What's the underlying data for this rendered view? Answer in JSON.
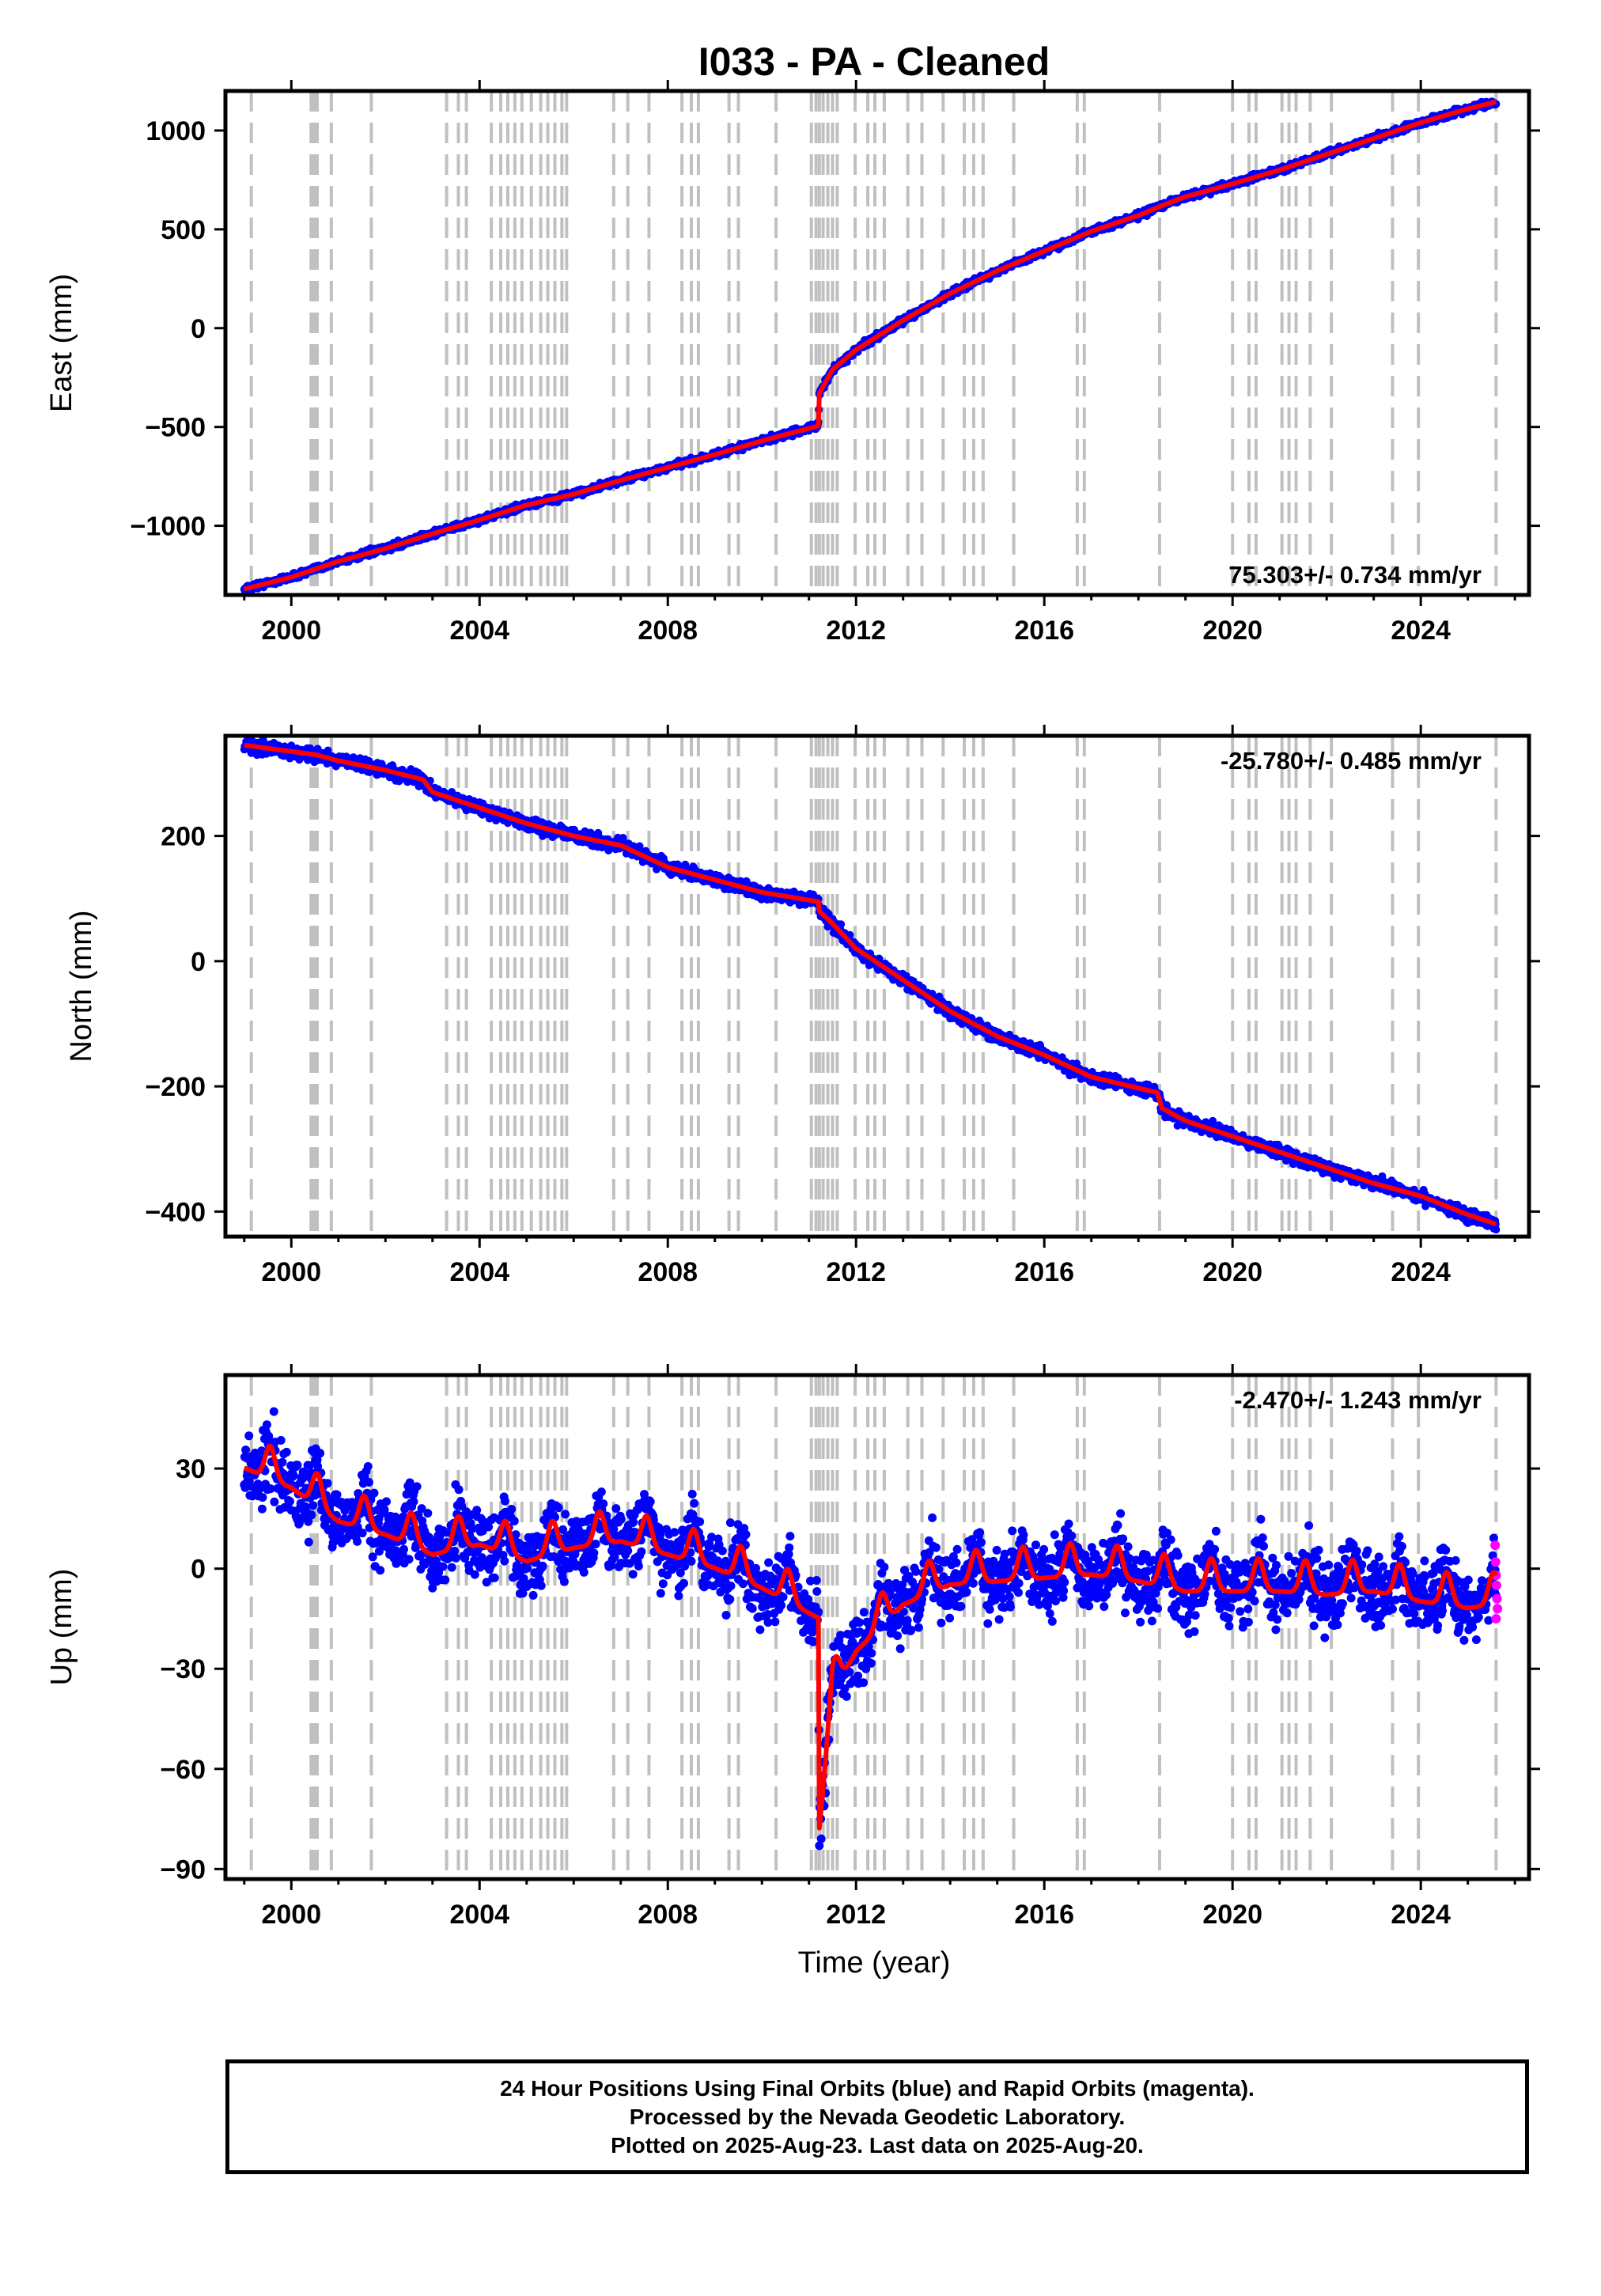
{
  "title": "I033  - PA - Cleaned",
  "chart_data": [
    {
      "type": "scatter",
      "ylabel": "East (mm)",
      "xlim": [
        1998.6,
        2026.3
      ],
      "ylim": [
        -1350,
        1200
      ],
      "yticks": [
        1000,
        500,
        0,
        -500,
        -1000
      ],
      "xticks": [
        2000,
        2004,
        2008,
        2012,
        2016,
        2020,
        2024
      ],
      "rate_label": "75.303+/- 0.734 mm/yr",
      "rate_position": "bottom-right",
      "model": [
        [
          1999.0,
          -1320
        ],
        [
          2000.0,
          -1260
        ],
        [
          2001.0,
          -1180
        ],
        [
          2002.0,
          -1115
        ],
        [
          2003.0,
          -1040
        ],
        [
          2004.0,
          -970
        ],
        [
          2005.0,
          -895
        ],
        [
          2006.0,
          -840
        ],
        [
          2007.0,
          -770
        ],
        [
          2008.0,
          -705
        ],
        [
          2009.0,
          -640
        ],
        [
          2010.0,
          -570
        ],
        [
          2011.2,
          -495
        ],
        [
          2011.22,
          -330
        ],
        [
          2011.5,
          -210
        ],
        [
          2012.0,
          -110
        ],
        [
          2013.0,
          40
        ],
        [
          2014.0,
          175
        ],
        [
          2015.0,
          290
        ],
        [
          2016.0,
          390
        ],
        [
          2017.0,
          490
        ],
        [
          2018.0,
          570
        ],
        [
          2018.5,
          620
        ],
        [
          2019.0,
          665
        ],
        [
          2020.0,
          730
        ],
        [
          2021.0,
          800
        ],
        [
          2022.0,
          880
        ],
        [
          2023.0,
          960
        ],
        [
          2024.0,
          1040
        ],
        [
          2025.0,
          1110
        ],
        [
          2025.6,
          1145
        ]
      ],
      "noise": 8
    },
    {
      "type": "scatter",
      "ylabel": "North (mm)",
      "xlim": [
        1998.6,
        2026.3
      ],
      "ylim": [
        -440,
        360
      ],
      "yticks": [
        200,
        0,
        -200,
        -400
      ],
      "xticks": [
        2000,
        2004,
        2008,
        2012,
        2016,
        2020,
        2024
      ],
      "rate_label": "-25.780+/- 0.485 mm/yr",
      "rate_position": "top-right",
      "model": [
        [
          1999.0,
          345
        ],
        [
          2000.0,
          335
        ],
        [
          2000.5,
          330
        ],
        [
          2001.0,
          320
        ],
        [
          2002.0,
          305
        ],
        [
          2002.8,
          290
        ],
        [
          2003.0,
          270
        ],
        [
          2004.0,
          245
        ],
        [
          2005.0,
          220
        ],
        [
          2006.0,
          200
        ],
        [
          2007.0,
          185
        ],
        [
          2008.0,
          150
        ],
        [
          2009.0,
          130
        ],
        [
          2010.0,
          110
        ],
        [
          2011.2,
          95
        ],
        [
          2011.22,
          80
        ],
        [
          2011.5,
          60
        ],
        [
          2012.0,
          20
        ],
        [
          2013.0,
          -30
        ],
        [
          2014.0,
          -80
        ],
        [
          2015.0,
          -120
        ],
        [
          2016.0,
          -150
        ],
        [
          2017.0,
          -185
        ],
        [
          2018.4,
          -210
        ],
        [
          2018.5,
          -235
        ],
        [
          2019.0,
          -255
        ],
        [
          2020.0,
          -280
        ],
        [
          2021.0,
          -305
        ],
        [
          2022.0,
          -330
        ],
        [
          2023.0,
          -355
        ],
        [
          2024.0,
          -375
        ],
        [
          2025.0,
          -405
        ],
        [
          2025.6,
          -420
        ]
      ],
      "noise": 5
    },
    {
      "type": "scatter",
      "ylabel": "Up (mm)",
      "xlabel": "Time (year)",
      "xlim": [
        1998.6,
        2026.3
      ],
      "ylim": [
        -93,
        58
      ],
      "yticks": [
        30,
        0,
        -30,
        -60,
        -90
      ],
      "xticks": [
        2000,
        2004,
        2008,
        2012,
        2016,
        2020,
        2024
      ],
      "rate_label": "-2.470+/- 1.243 mm/yr",
      "rate_position": "top-right",
      "model": [
        [
          1999.0,
          33
        ],
        [
          2000.0,
          27
        ],
        [
          2001.0,
          17
        ],
        [
          2002.0,
          13
        ],
        [
          2003.0,
          7
        ],
        [
          2004.0,
          10
        ],
        [
          2005.0,
          5
        ],
        [
          2006.0,
          9
        ],
        [
          2007.0,
          11
        ],
        [
          2008.0,
          7
        ],
        [
          2009.0,
          3
        ],
        [
          2010.0,
          -3
        ],
        [
          2011.2,
          -12
        ],
        [
          2011.22,
          -75
        ],
        [
          2011.5,
          -35
        ],
        [
          2012.0,
          -22
        ],
        [
          2013.0,
          -8
        ],
        [
          2014.0,
          -2
        ],
        [
          2015.0,
          -1
        ],
        [
          2016.0,
          0
        ],
        [
          2017.0,
          1
        ],
        [
          2018.0,
          -1
        ],
        [
          2019.0,
          -4
        ],
        [
          2020.0,
          -4
        ],
        [
          2021.0,
          -4
        ],
        [
          2022.0,
          -5
        ],
        [
          2023.0,
          -4
        ],
        [
          2024.0,
          -7
        ],
        [
          2025.0,
          -9
        ],
        [
          2025.6,
          -8
        ]
      ],
      "seasonal_amp": 7,
      "noise": 5,
      "rapid_points": [
        [
          2025.58,
          7
        ],
        [
          2025.59,
          2
        ],
        [
          2025.6,
          -2
        ],
        [
          2025.61,
          -5
        ],
        [
          2025.62,
          -9
        ],
        [
          2025.63,
          -12
        ],
        [
          2025.6,
          -15
        ]
      ]
    }
  ],
  "equipment_changes": [
    1999.15,
    2000.42,
    2000.45,
    2000.48,
    2000.52,
    2000.55,
    2000.85,
    2001.7,
    2003.3,
    2003.55,
    2003.72,
    2004.25,
    2004.45,
    2004.6,
    2004.75,
    2004.9,
    2005.1,
    2005.3,
    2005.45,
    2005.6,
    2005.75,
    2005.85,
    2006.85,
    2007.15,
    2007.6,
    2008.3,
    2008.5,
    2008.65,
    2009.3,
    2009.5,
    2010.3,
    2011.05,
    2011.15,
    2011.22,
    2011.3,
    2011.4,
    2011.5,
    2011.6,
    2011.98,
    2012.25,
    2012.4,
    2012.6,
    2013.1,
    2013.4,
    2013.85,
    2014.3,
    2014.5,
    2014.7,
    2015.35,
    2016.7,
    2016.85,
    2018.45,
    2020.0,
    2020.35,
    2020.5,
    2021.05,
    2021.2,
    2021.35,
    2021.65,
    2022.1,
    2023.4,
    2023.95,
    2025.6
  ],
  "colors": {
    "final": "#0000ff",
    "rapid": "#ff00ff",
    "model": "#ff0000",
    "grid": "#c0c0c0"
  },
  "footer": {
    "line1": "24 Hour Positions Using Final Orbits (blue) and Rapid Orbits (magenta).",
    "line2": "Processed by the Nevada Geodetic Laboratory.",
    "line3": "Plotted on 2025-Aug-23. Last data on 2025-Aug-20."
  }
}
